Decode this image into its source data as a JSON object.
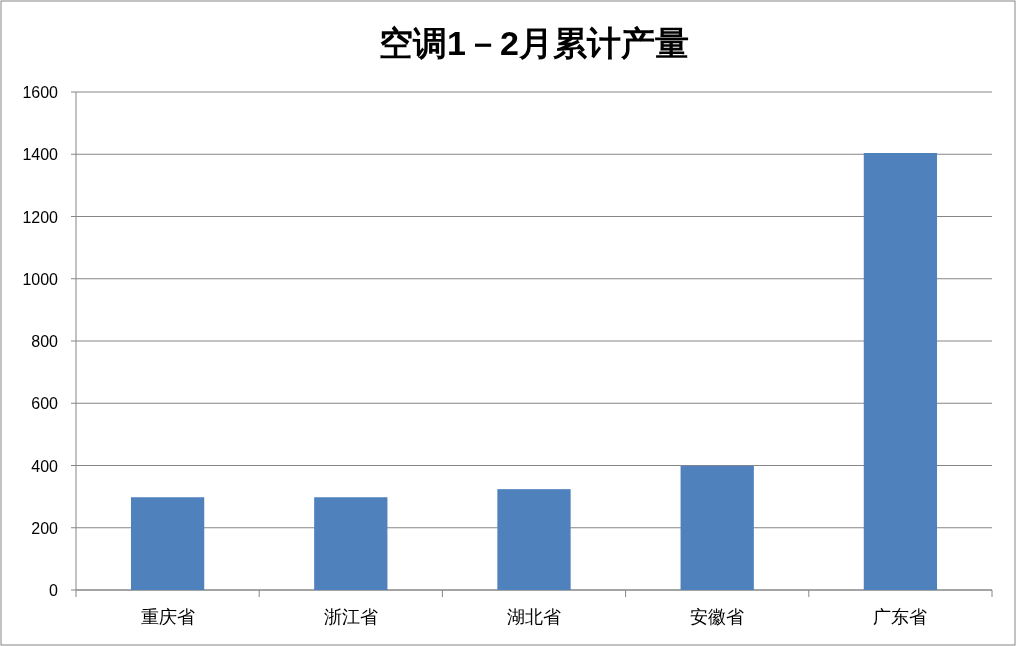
{
  "chart_data": {
    "type": "bar",
    "title": "空调1－2月累计产量",
    "categories": [
      "重庆省",
      "浙江省",
      "湖北省",
      "安徽省",
      "广东省"
    ],
    "values": [
      298,
      298,
      324,
      399,
      1404
    ],
    "color": "#4f81bd",
    "ylim": [
      0,
      1600
    ],
    "yticks": [
      0,
      200,
      400,
      600,
      800,
      1000,
      1200,
      1400,
      1600
    ],
    "grid": "y"
  }
}
